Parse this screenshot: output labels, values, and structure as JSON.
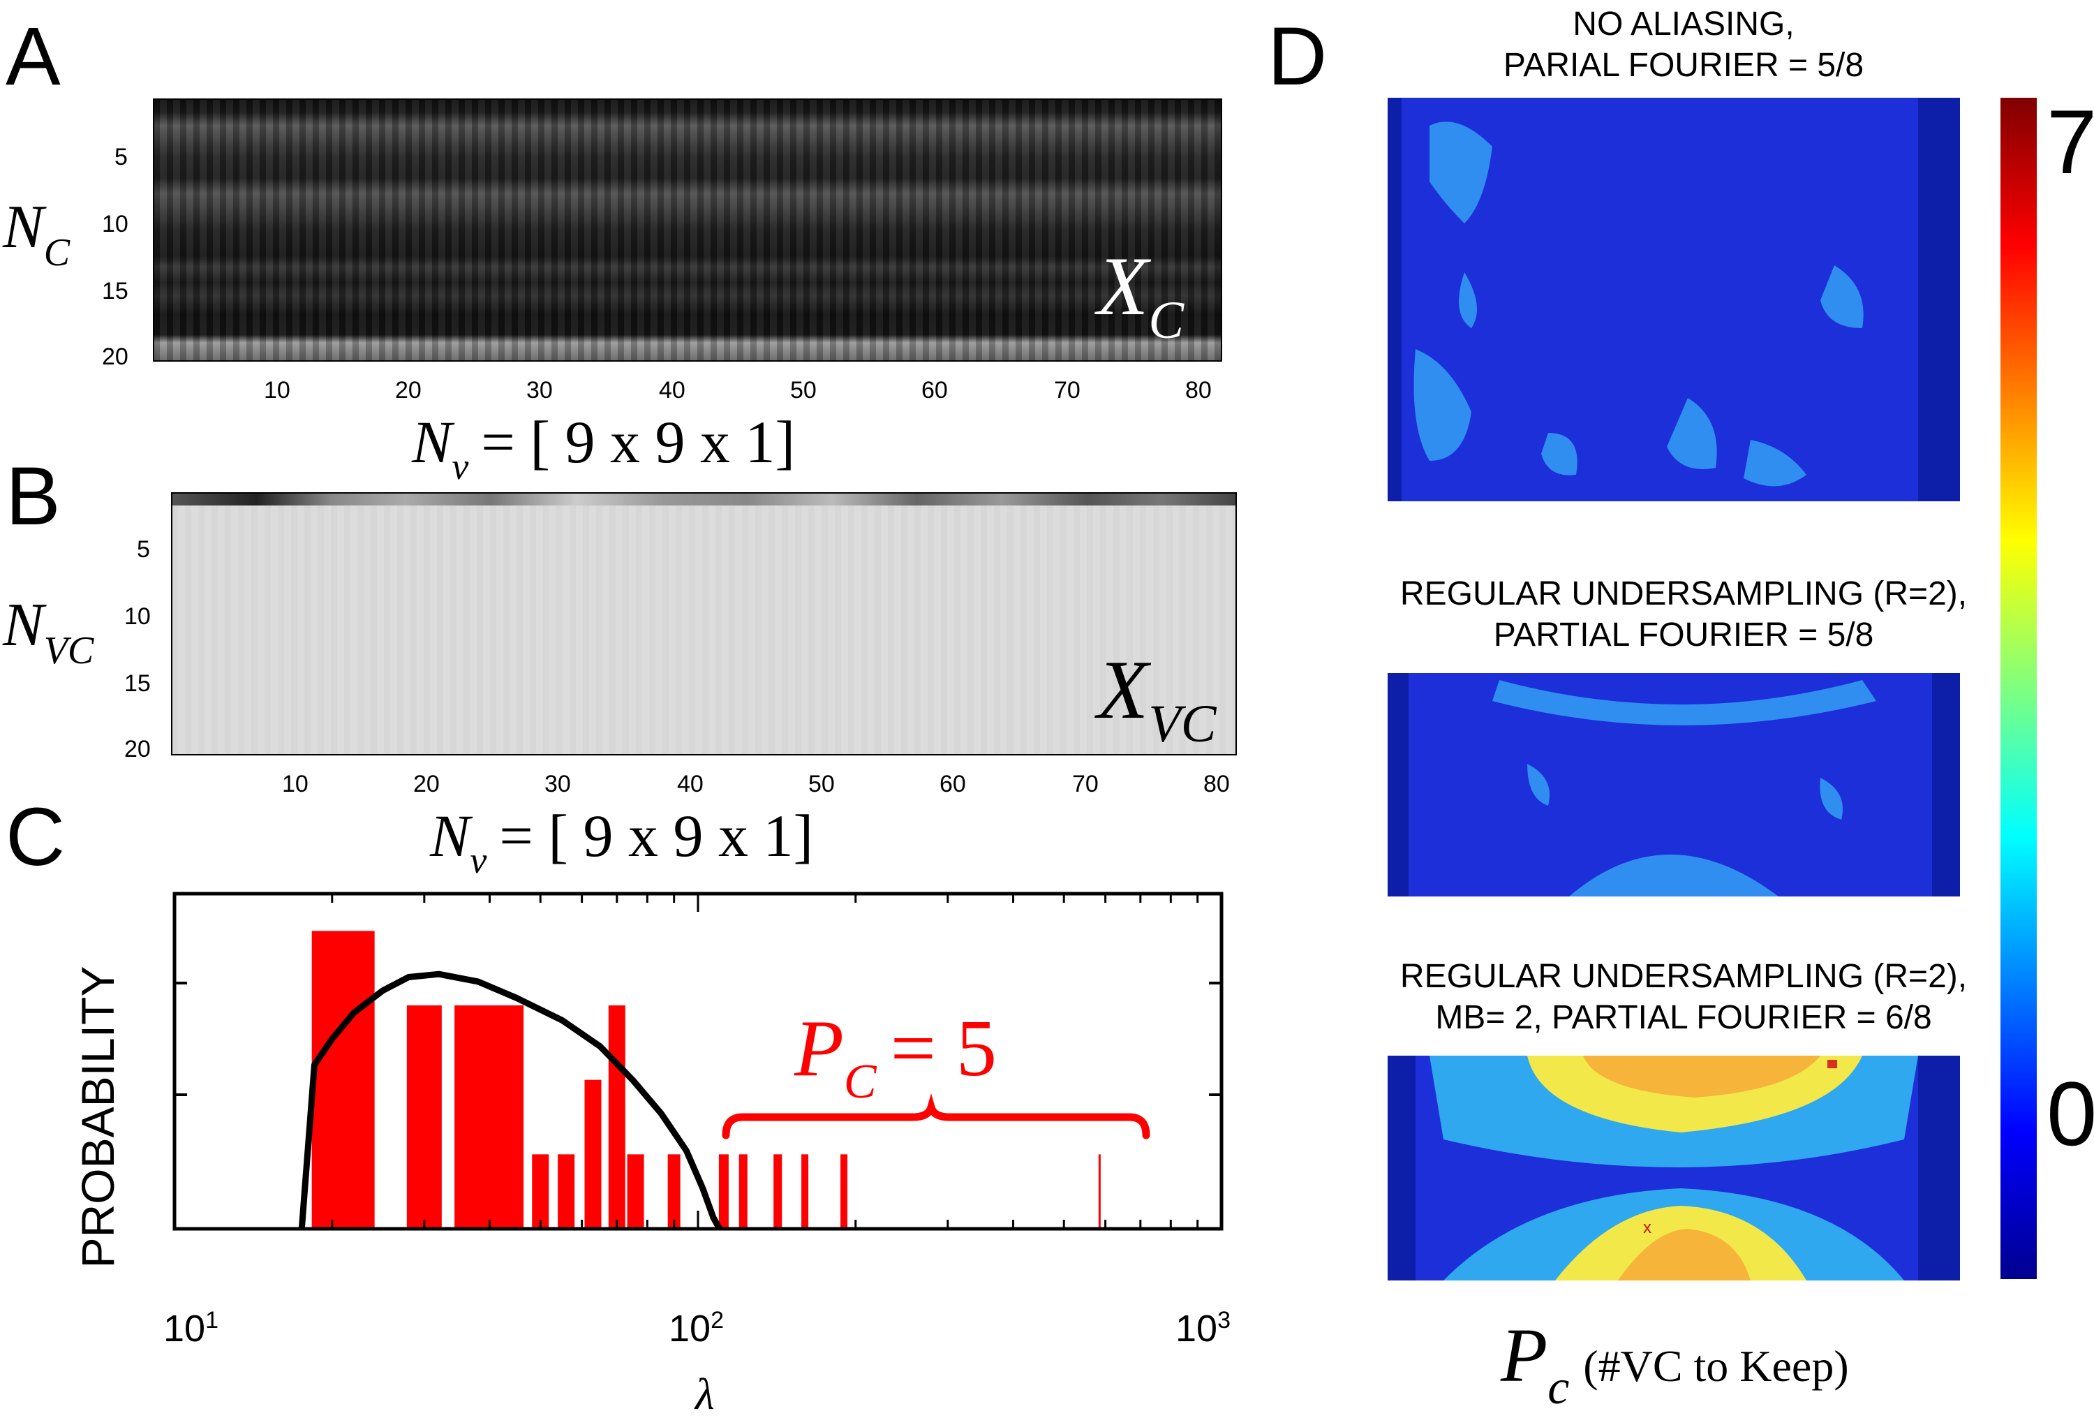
{
  "panels": {
    "a": {
      "letter": "A",
      "y_label_main": "N",
      "y_label_sub": "C",
      "matrix_label_main": "X",
      "matrix_label_sub": "C",
      "x_ticks": [
        "10",
        "20",
        "30",
        "40",
        "50",
        "60",
        "70",
        "80"
      ],
      "y_ticks": [
        "5",
        "10",
        "15",
        "20"
      ],
      "x_label_main": "N",
      "x_label_sub": "v",
      "x_label_rest": "=  [ 9 x 9 x 1]"
    },
    "b": {
      "letter": "B",
      "y_label_main": "N",
      "y_label_sub": "VC",
      "matrix_label_main": "X",
      "matrix_label_sub": "VC",
      "x_ticks": [
        "10",
        "20",
        "30",
        "40",
        "50",
        "60",
        "70",
        "80"
      ],
      "y_ticks": [
        "5",
        "10",
        "15",
        "20"
      ],
      "x_label_main": "N",
      "x_label_sub": "v",
      "x_label_rest": "=  [ 9 x 9 x 1]"
    },
    "c": {
      "letter": "C",
      "y_label": "PROBABILITY",
      "x_label": "λ",
      "annotation_main": "P",
      "annotation_sub": "C",
      "annotation_rest": "= 5",
      "x_tick_base": "10",
      "x_tick_exps": [
        "1",
        "2",
        "3"
      ]
    },
    "d": {
      "letter": "D",
      "captions": [
        [
          "NO ALIASING,",
          "PARIAL FOURIER = 5/8"
        ],
        [
          "REGULAR UNDERSAMPLING (R=2),",
          "PARTIAL FOURIER = 5/8"
        ],
        [
          "REGULAR UNDERSAMPLING (R=2),",
          "MB= 2, PARTIAL FOURIER = 6/8"
        ]
      ],
      "colorbar_max": "7",
      "colorbar_min": "0",
      "xlabel_main": "P",
      "xlabel_sub": "c",
      "xlabel_rest": "(#VC to Keep)",
      "marker": "x"
    }
  },
  "chart_data": {
    "type": "bar",
    "xscale": "log",
    "xlim": [
      10,
      1000
    ],
    "bars": [
      {
        "x": 21,
        "value": 4
      },
      {
        "x": 30,
        "value": 3
      },
      {
        "x": 37,
        "value": 3
      },
      {
        "x": 43,
        "value": 3
      },
      {
        "x": 50,
        "value": 1
      },
      {
        "x": 56,
        "value": 1
      },
      {
        "x": 63,
        "value": 2
      },
      {
        "x": 70,
        "value": 3
      },
      {
        "x": 76,
        "value": 1
      },
      {
        "x": 90,
        "value": 1
      },
      {
        "x": 112,
        "value": 1
      },
      {
        "x": 122,
        "value": 1
      },
      {
        "x": 142,
        "value": 1
      },
      {
        "x": 160,
        "value": 1
      },
      {
        "x": 190,
        "value": 1
      },
      {
        "x": 585,
        "value": 1
      }
    ],
    "curve": [
      [
        17.5,
        0
      ],
      [
        18.5,
        2.2
      ],
      [
        20,
        2.55
      ],
      [
        22,
        2.9
      ],
      [
        25,
        3.2
      ],
      [
        28,
        3.38
      ],
      [
        32,
        3.42
      ],
      [
        38,
        3.32
      ],
      [
        45,
        3.1
      ],
      [
        55,
        2.8
      ],
      [
        65,
        2.45
      ],
      [
        75,
        2.0
      ],
      [
        85,
        1.55
      ],
      [
        95,
        1.05
      ],
      [
        102,
        0.55
      ],
      [
        107,
        0.15
      ],
      [
        110,
        0
      ]
    ],
    "ylim": [
      0,
      4.5
    ]
  },
  "colors": {
    "bar": "#ff0000",
    "annotation": "#ff0000",
    "curve": "#000000"
  }
}
